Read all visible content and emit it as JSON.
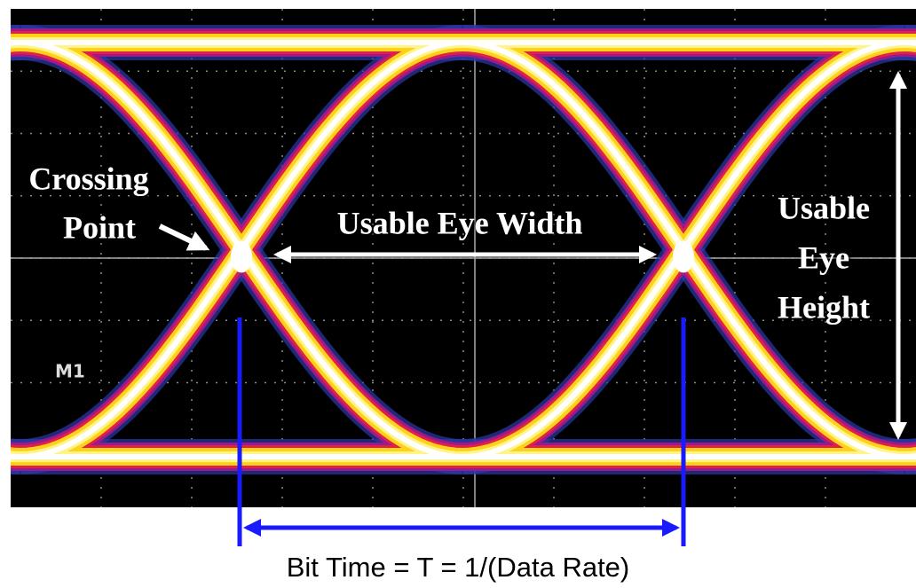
{
  "scope_label": "M1",
  "crossing_point": [
    "Crossing",
    "Point"
  ],
  "eye_width": "Usable Eye Width",
  "eye_height": [
    "Usable",
    "Eye",
    "Height"
  ],
  "bit_time": "Bit Time = T = 1/(Data Rate)"
}
